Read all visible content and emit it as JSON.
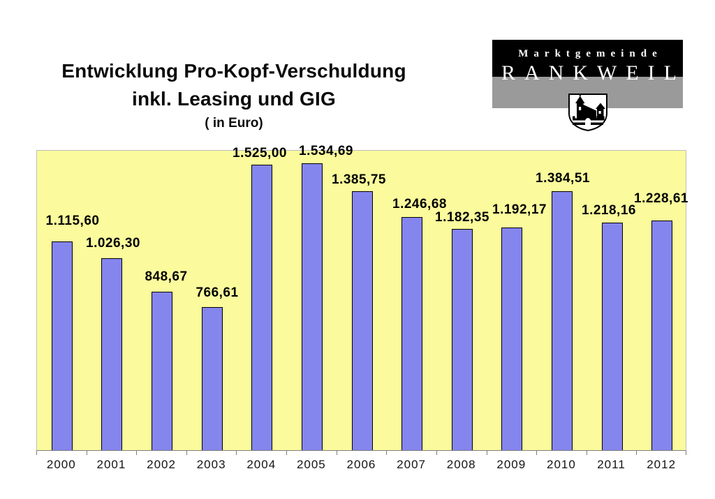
{
  "header": {
    "title_line1": "Entwicklung Pro-Kopf-Verschuldung",
    "title_line2": "inkl. Leasing und GIG",
    "title_line3": "( in Euro)"
  },
  "logo": {
    "name_top": "Marktgemeinde",
    "name_main": "RANKWEIL",
    "shield_icon": "castle-shield-icon",
    "colors": {
      "top_band": "#000000",
      "bottom_band": "#9a9a9a",
      "text": "#ffffff"
    }
  },
  "chart_data": {
    "type": "bar",
    "title": "Entwicklung Pro-Kopf-Verschuldung inkl. Leasing und GIG ( in Euro)",
    "categories": [
      "2000",
      "2001",
      "2002",
      "2003",
      "2004",
      "2005",
      "2006",
      "2007",
      "2008",
      "2009",
      "2010",
      "2011",
      "2012"
    ],
    "values": [
      1115.6,
      1026.3,
      848.67,
      766.61,
      1525.0,
      1534.69,
      1385.75,
      1246.68,
      1182.35,
      1192.17,
      1384.51,
      1218.16,
      1228.61
    ],
    "data_labels": [
      "1.115,60",
      "1.026,30",
      "848,67",
      "766,61",
      "1.525,00",
      "1.534,69",
      "1.385,75",
      "1.246,68",
      "1.182,35",
      "1.192,17",
      "1.384,51",
      "1.218,16",
      "1.228,61"
    ],
    "xlabel": "",
    "ylabel": "",
    "ylim": [
      0,
      1600
    ],
    "grid": false,
    "legend": false,
    "y_axis_labels_visible": false,
    "colors": {
      "bar_fill": "#8585ee",
      "bar_border": "#000000",
      "plot_background": "#fbfb9d",
      "axis_line": "#7d7d7d",
      "label_text": "#000000"
    }
  }
}
